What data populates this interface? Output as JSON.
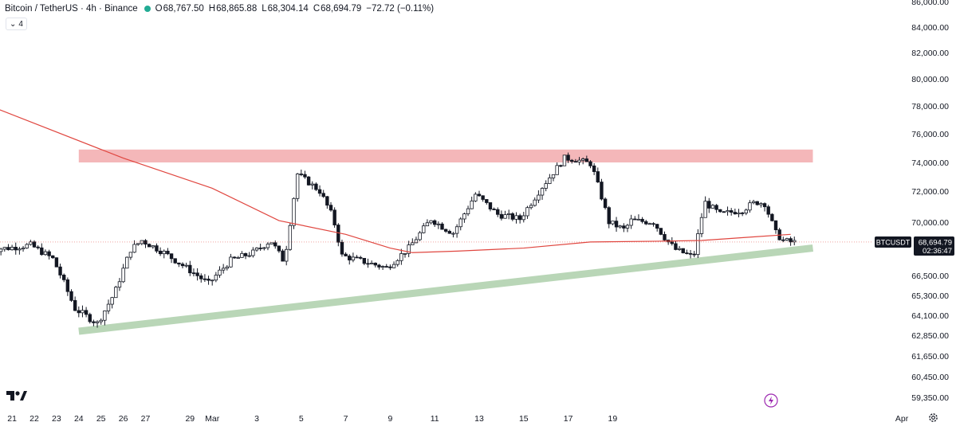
{
  "legend": {
    "symbol": "Bitcoin / TetherUS · 4h · Binance",
    "o_label": "O",
    "o_value": "68,767.50",
    "h_label": "H",
    "h_value": "68,865.88",
    "l_label": "L",
    "l_value": "68,304.14",
    "c_label": "C",
    "c_value": "68,694.79",
    "change": "−72.72 (−0.11%)"
  },
  "indicators_toggle": {
    "chevron": "⌄",
    "count": "4"
  },
  "price_badge": {
    "ticker": "BTCUSDT",
    "price": "68,694.79",
    "countdown": "02:36:47"
  },
  "icons": {
    "logo": "tradingview-logo-icon",
    "bolt": "lightning-icon",
    "settings": "gear-icon"
  },
  "colors": {
    "up": "#ffffff",
    "down": "#131722",
    "wick": "#131722",
    "ma": "#e0463f",
    "resistance": "#f4b7b9",
    "support": "#b9d6b7"
  },
  "chart_data": {
    "type": "candlestick",
    "timeframe": "4h",
    "x_ticks": [
      "22",
      "24",
      "26",
      "Mar",
      "3",
      "5",
      "7",
      "9",
      "11",
      "13",
      "15",
      "17",
      "19",
      "21",
      "23",
      "25",
      "27",
      "29",
      "Apr"
    ],
    "y_ticks": [
      "86,000.00",
      "84,000.00",
      "82,000.00",
      "80,000.00",
      "78,000.00",
      "76,000.00",
      "74,000.00",
      "72,000.00",
      "70,000.00",
      "66,500.00",
      "65,300.00",
      "64,100.00",
      "62,850.00",
      "61,650.00",
      "60,450.00",
      "59,350.00"
    ],
    "last_price": 68694.79,
    "resistance_zone": {
      "from": "Feb 24",
      "to": "Mar 28",
      "low": 74000,
      "high": 74900
    },
    "support_trendline": {
      "from": [
        "Feb 24",
        63100
      ],
      "to": [
        "Mar 28",
        68300
      ]
    },
    "moving_average": {
      "line": [
        [
          "Feb 20",
          78000
        ],
        [
          "Feb 26",
          74300
        ],
        [
          "Mar 1",
          72200
        ],
        [
          "Mar 4",
          70100
        ],
        [
          "Mar 7",
          69200
        ],
        [
          "Mar 9",
          68300
        ],
        [
          "Mar 10",
          68000
        ],
        [
          "Mar 12",
          68100
        ],
        [
          "Mar 15",
          68300
        ],
        [
          "Mar 18",
          68700
        ],
        [
          "Mar 21",
          68750
        ],
        [
          "Mar 23",
          68800
        ],
        [
          "Mar 25",
          69000
        ],
        [
          "Mar 27",
          69200
        ]
      ]
    },
    "anchors": [
      [
        "Feb 20",
        68200
      ],
      [
        "Feb 21",
        68300
      ],
      [
        "Feb 22",
        68500
      ],
      [
        "Feb 23",
        67600
      ],
      [
        "Feb 24",
        64500
      ],
      [
        "Feb 25",
        63600
      ],
      [
        "Feb 25.8",
        65500
      ],
      [
        "Feb 26.5",
        68200
      ],
      [
        "Feb 27",
        68800
      ],
      [
        "Feb 28",
        68000
      ],
      [
        "Mar 1",
        66000
      ],
      [
        "Mar 2",
        67500
      ],
      [
        "Mar 3",
        68000
      ],
      [
        "Mar 3.8",
        68800
      ],
      [
        "Mar 4.4",
        67400
      ],
      [
        "Mar 5",
        73200
      ],
      [
        "Mar 6",
        72000
      ],
      [
        "Mar 6.6",
        70300
      ],
      [
        "Mar 7",
        67800
      ],
      [
        "Mar 8",
        67400
      ],
      [
        "Mar 9",
        67000
      ],
      [
        "Mar 10",
        68300
      ],
      [
        "Mar 11",
        70200
      ],
      [
        "Mar 11.6",
        69600
      ],
      [
        "Mar 12",
        69300
      ],
      [
        "Mar 13",
        71800
      ],
      [
        "Mar 14",
        70500
      ],
      [
        "Mar 15",
        70200
      ],
      [
        "Mar 16",
        72300
      ],
      [
        "Mar 17",
        74300
      ],
      [
        "Mar 17.5",
        74200
      ],
      [
        "Mar 18.2",
        73900
      ],
      [
        "Mar 19",
        70000
      ],
      [
        "Mar 19.7",
        69500
      ],
      [
        "Mar 20",
        70100
      ],
      [
        "Mar 21",
        70000
      ],
      [
        "Mar 21.6",
        68800
      ],
      [
        "Mar 22",
        68200
      ],
      [
        "Mar 22.8",
        67700
      ],
      [
        "Mar 23.3",
        71300
      ],
      [
        "Mar 24",
        70500
      ],
      [
        "Mar 25",
        70800
      ],
      [
        "Mar 25.6",
        71300
      ],
      [
        "Mar 26",
        71200
      ],
      [
        "Mar 26.5",
        69300
      ],
      [
        "Mar 26.8",
        68800
      ],
      [
        "Mar 27.2",
        68690
      ]
    ]
  }
}
